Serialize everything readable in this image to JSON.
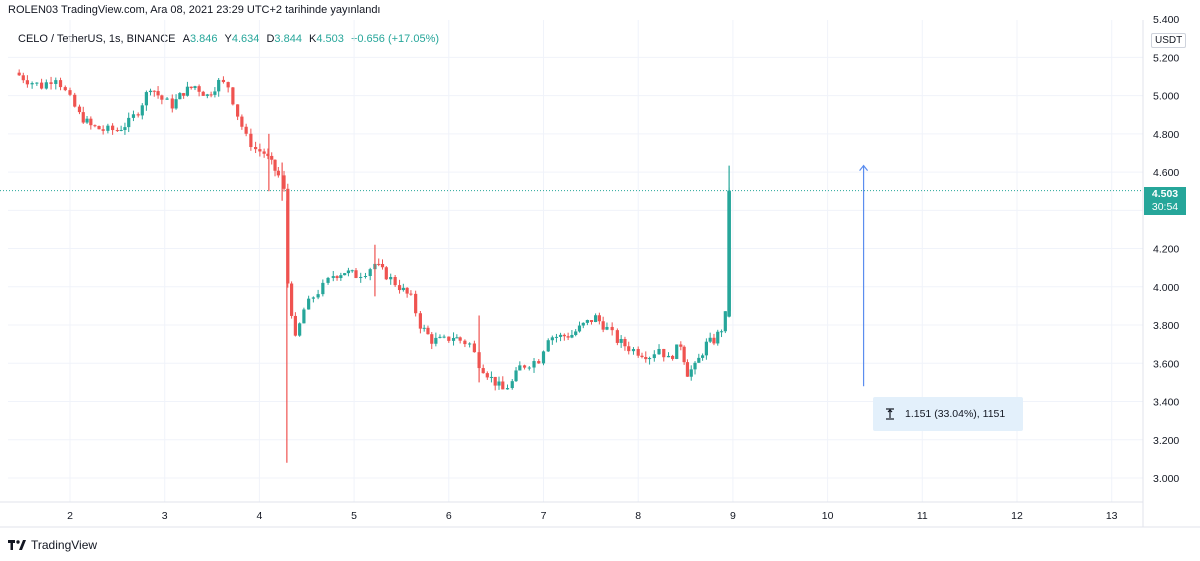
{
  "header": {
    "publish_text": "ROLEN03 TradingView.com, Ara 08, 2021 23:29 UTC+2 tarihinde yayınlandı"
  },
  "legend": {
    "symbol": "CELO / TetherUS, 1s, BINANCE",
    "open_label": "A",
    "open": "3.846",
    "high_label": "Y",
    "high": "4.634",
    "low_label": "D",
    "low": "3.844",
    "close_label": "K",
    "close": "4.503",
    "change": "+0.656 (+17.05%)"
  },
  "price_axis": {
    "unit": "USDT",
    "last_price": "4.503",
    "countdown": "30:54"
  },
  "measure": {
    "label": "1.151 (33.04%), 1151"
  },
  "brand": {
    "name": "TradingView"
  },
  "colors": {
    "up": "#26a69a",
    "down": "#ef5350",
    "measure": "#5b8def",
    "grid": "#f0f3fa"
  },
  "chart_data": {
    "type": "candlestick",
    "y_ticks": [
      "3.000",
      "3.200",
      "3.400",
      "3.600",
      "3.800",
      "4.000",
      "4.200",
      "4.400",
      "4.600",
      "4.800",
      "5.000",
      "5.200",
      "5.400"
    ],
    "x_ticks": [
      "2",
      "3",
      "4",
      "5",
      "6",
      "7",
      "8",
      "9",
      "10",
      "11",
      "12",
      "13"
    ],
    "ylim": [
      2.93,
      5.44
    ],
    "xlim": [
      1.4,
      13.3
    ],
    "last_price": 4.503,
    "measure": {
      "x": 10.38,
      "from": 3.48,
      "to": 4.634
    },
    "path": [
      [
        1.42,
        5.12
      ],
      [
        1.55,
        5.08
      ],
      [
        1.7,
        5.05
      ],
      [
        1.85,
        5.1
      ],
      [
        2.0,
        4.98
      ],
      [
        2.1,
        4.9
      ],
      [
        2.22,
        4.84
      ],
      [
        2.35,
        4.82
      ],
      [
        2.5,
        4.82
      ],
      [
        2.62,
        4.86
      ],
      [
        2.72,
        4.92
      ],
      [
        2.85,
        5.05
      ],
      [
        2.97,
        4.98
      ],
      [
        3.08,
        4.95
      ],
      [
        3.2,
        5.02
      ],
      [
        3.32,
        5.05
      ],
      [
        3.45,
        5.0
      ],
      [
        3.57,
        5.07
      ],
      [
        3.67,
        5.05
      ],
      [
        3.77,
        4.9
      ],
      [
        3.86,
        4.78
      ],
      [
        3.96,
        4.72
      ],
      [
        4.05,
        4.7
      ],
      [
        4.13,
        4.64
      ],
      [
        4.2,
        4.58
      ],
      [
        4.26,
        4.5
      ],
      [
        4.3,
        4.02
      ],
      [
        4.38,
        3.72
      ],
      [
        4.47,
        3.88
      ],
      [
        4.57,
        3.95
      ],
      [
        4.67,
        4.0
      ],
      [
        4.78,
        4.06
      ],
      [
        4.9,
        4.08
      ],
      [
        5.02,
        4.06
      ],
      [
        5.12,
        4.08
      ],
      [
        5.22,
        4.12
      ],
      [
        5.34,
        4.06
      ],
      [
        5.48,
        4.0
      ],
      [
        5.6,
        3.94
      ],
      [
        5.7,
        3.8
      ],
      [
        5.82,
        3.72
      ],
      [
        5.95,
        3.72
      ],
      [
        6.05,
        3.74
      ],
      [
        6.12,
        3.72
      ],
      [
        6.22,
        3.7
      ],
      [
        6.32,
        3.6
      ],
      [
        6.45,
        3.52
      ],
      [
        6.57,
        3.46
      ],
      [
        6.67,
        3.5
      ],
      [
        6.75,
        3.58
      ],
      [
        6.85,
        3.6
      ],
      [
        6.95,
        3.62
      ],
      [
        7.05,
        3.74
      ],
      [
        7.18,
        3.74
      ],
      [
        7.3,
        3.75
      ],
      [
        7.42,
        3.8
      ],
      [
        7.55,
        3.84
      ],
      [
        7.67,
        3.78
      ],
      [
        7.78,
        3.72
      ],
      [
        7.9,
        3.68
      ],
      [
        8.0,
        3.66
      ],
      [
        8.12,
        3.64
      ],
      [
        8.22,
        3.68
      ],
      [
        8.32,
        3.62
      ],
      [
        8.45,
        3.7
      ],
      [
        8.52,
        3.55
      ],
      [
        8.6,
        3.58
      ],
      [
        8.72,
        3.7
      ],
      [
        8.8,
        3.72
      ],
      [
        8.88,
        3.78
      ],
      [
        8.92,
        3.85
      ],
      [
        8.96,
        4.503
      ]
    ],
    "spikes": [
      [
        4.29,
        3.08,
        4.45
      ],
      [
        4.24,
        4.45,
        4.65
      ],
      [
        6.32,
        3.5,
        3.85
      ],
      [
        5.22,
        3.95,
        4.22
      ],
      [
        8.96,
        3.84,
        4.634
      ],
      [
        4.1,
        4.5,
        4.8
      ]
    ]
  }
}
